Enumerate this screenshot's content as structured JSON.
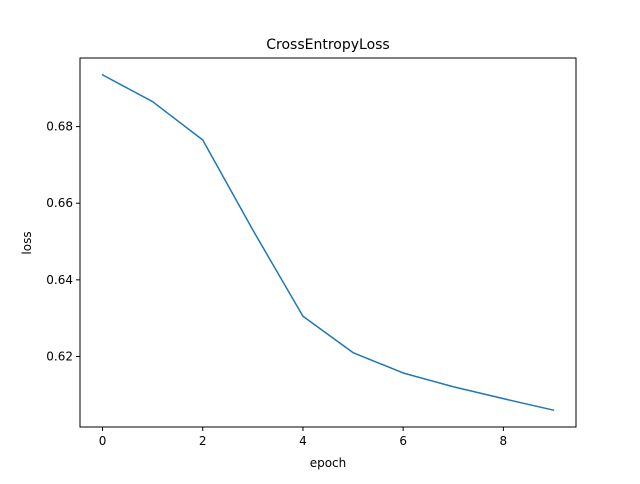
{
  "chart_data": {
    "type": "line",
    "title": "CrossEntropyLoss",
    "xlabel": "epoch",
    "ylabel": "loss",
    "x": [
      0,
      1,
      2,
      3,
      4,
      5,
      6,
      7,
      8,
      9
    ],
    "series": [
      {
        "values": [
          0.6935,
          0.6865,
          0.6765,
          0.653,
          0.6305,
          0.621,
          0.6157,
          0.6121,
          0.609,
          0.606
        ],
        "color": "#1f77b4"
      }
    ],
    "xlim": [
      -0.45,
      9.45
    ],
    "ylim": [
      0.6016,
      0.6979
    ],
    "xticks": [
      0,
      2,
      4,
      6,
      8
    ],
    "xtick_labels": [
      "0",
      "2",
      "4",
      "6",
      "8"
    ],
    "yticks": [
      0.62,
      0.64,
      0.66,
      0.68
    ],
    "ytick_labels": [
      "0.62",
      "0.64",
      "0.66",
      "0.68"
    ],
    "grid": false,
    "legend": "none"
  }
}
